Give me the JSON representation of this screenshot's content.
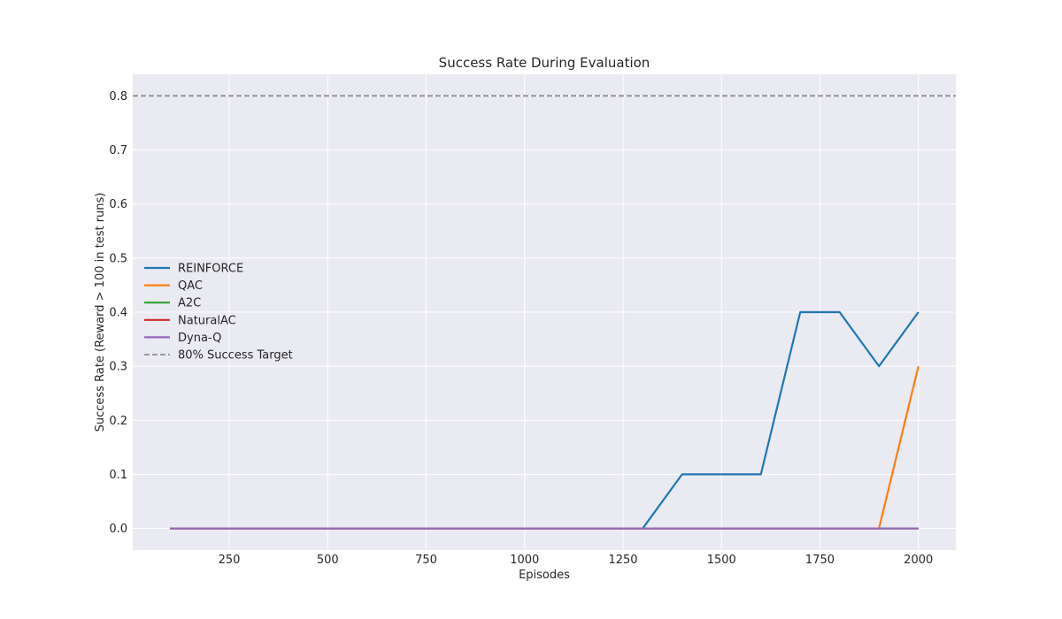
{
  "chart_data": {
    "type": "line",
    "title": "Success Rate During Evaluation",
    "xlabel": "Episodes",
    "ylabel": "Success Rate (Reward > 100 in test runs)",
    "xlim": [
      5,
      2095
    ],
    "ylim": [
      -0.04,
      0.84
    ],
    "xticks": [
      250,
      500,
      750,
      1000,
      1250,
      1500,
      1750,
      2000
    ],
    "yticks": [
      0.0,
      0.1,
      0.2,
      0.3,
      0.4,
      0.5,
      0.6,
      0.7,
      0.8
    ],
    "ytick_labels": [
      "0.0",
      "0.1",
      "0.2",
      "0.3",
      "0.4",
      "0.5",
      "0.6",
      "0.7",
      "0.8"
    ],
    "grid": true,
    "legend_position": "center-left",
    "background": "#eaeaf2",
    "x": [
      100,
      200,
      300,
      400,
      500,
      600,
      700,
      800,
      900,
      1000,
      1100,
      1200,
      1300,
      1400,
      1500,
      1600,
      1700,
      1800,
      1900,
      2000
    ],
    "series": [
      {
        "name": "REINFORCE",
        "color": "#1f77b4",
        "values": [
          0,
          0,
          0,
          0,
          0,
          0,
          0,
          0,
          0,
          0,
          0,
          0,
          0,
          0.1,
          0.1,
          0.1,
          0.4,
          0.4,
          0.3,
          0.4
        ]
      },
      {
        "name": "QAC",
        "color": "#ff7f0e",
        "values": [
          0,
          0,
          0,
          0,
          0,
          0,
          0,
          0,
          0,
          0,
          0,
          0,
          0,
          0,
          0,
          0,
          0,
          0,
          0,
          0.3
        ]
      },
      {
        "name": "A2C",
        "color": "#2ca02c",
        "values": [
          0,
          0,
          0,
          0,
          0,
          0,
          0,
          0,
          0,
          0,
          0,
          0,
          0,
          0,
          0,
          0,
          0,
          0,
          0,
          0
        ]
      },
      {
        "name": "NaturalAC",
        "color": "#d62728",
        "values": [
          0,
          0,
          0,
          0,
          0,
          0,
          0,
          0,
          0,
          0,
          0,
          0,
          0,
          0,
          0,
          0,
          0,
          0,
          0,
          0
        ]
      },
      {
        "name": "Dyna-Q",
        "color": "#9467bd",
        "values": [
          0,
          0,
          0,
          0,
          0,
          0,
          0,
          0,
          0,
          0,
          0,
          0,
          0,
          0,
          0,
          0,
          0,
          0,
          0,
          0
        ]
      }
    ],
    "reference_lines": [
      {
        "name": "80% Success Target",
        "y": 0.8,
        "color": "#808080",
        "style": "dashed"
      }
    ]
  }
}
